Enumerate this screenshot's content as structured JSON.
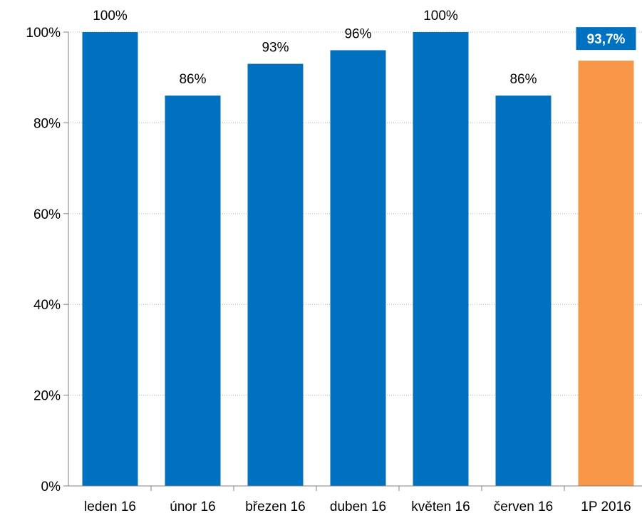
{
  "chart_data": {
    "type": "bar",
    "title": "",
    "xlabel": "",
    "ylabel": "",
    "categories": [
      "leden 16",
      "únor 16",
      "březen 16",
      "duben 16",
      "květen 16",
      "červen 16",
      "1P 2016"
    ],
    "values": [
      100,
      86,
      93,
      96,
      100,
      86,
      93.7
    ],
    "data_labels": [
      "100%",
      "86%",
      "93%",
      "96%",
      "100%",
      "86%",
      "93,7%"
    ],
    "highlight_index": 6,
    "ylim": [
      0,
      100
    ],
    "yticks": [
      0,
      20,
      40,
      60,
      80,
      100
    ],
    "ytick_labels": [
      "0%",
      "20%",
      "40%",
      "60%",
      "80%",
      "100%"
    ],
    "grid": true,
    "legend": "none"
  },
  "colors": {
    "bar": "#0070C0",
    "highlight_bar": "#F79646",
    "highlight_label_bg": "#0070C0"
  }
}
